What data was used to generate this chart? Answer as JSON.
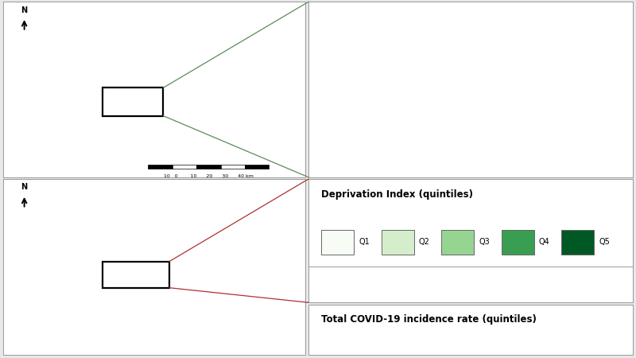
{
  "bg_color": "#e8e8e8",
  "panel_bg": "#ffffff",
  "top_right_legend_title": "Deprivation Index (quintiles)",
  "bottom_right_legend_title": "Total COVID-19 incidence rate (quintiles)",
  "green_quintiles": [
    "#f7fcf5",
    "#d4edca",
    "#96d492",
    "#3a9e52",
    "#005824"
  ],
  "red_quintiles": [
    "#fff0ee",
    "#f4bfb8",
    "#e07e7a",
    "#c0302a",
    "#7a0010"
  ],
  "scale_bar_label": "10   0    10   20   30   40 km",
  "line_color_top": "#5a8c5a",
  "line_color_bottom": "#b03030",
  "q_labels": [
    "Q1",
    "Q2",
    "Q3",
    "Q4",
    "Q5"
  ]
}
